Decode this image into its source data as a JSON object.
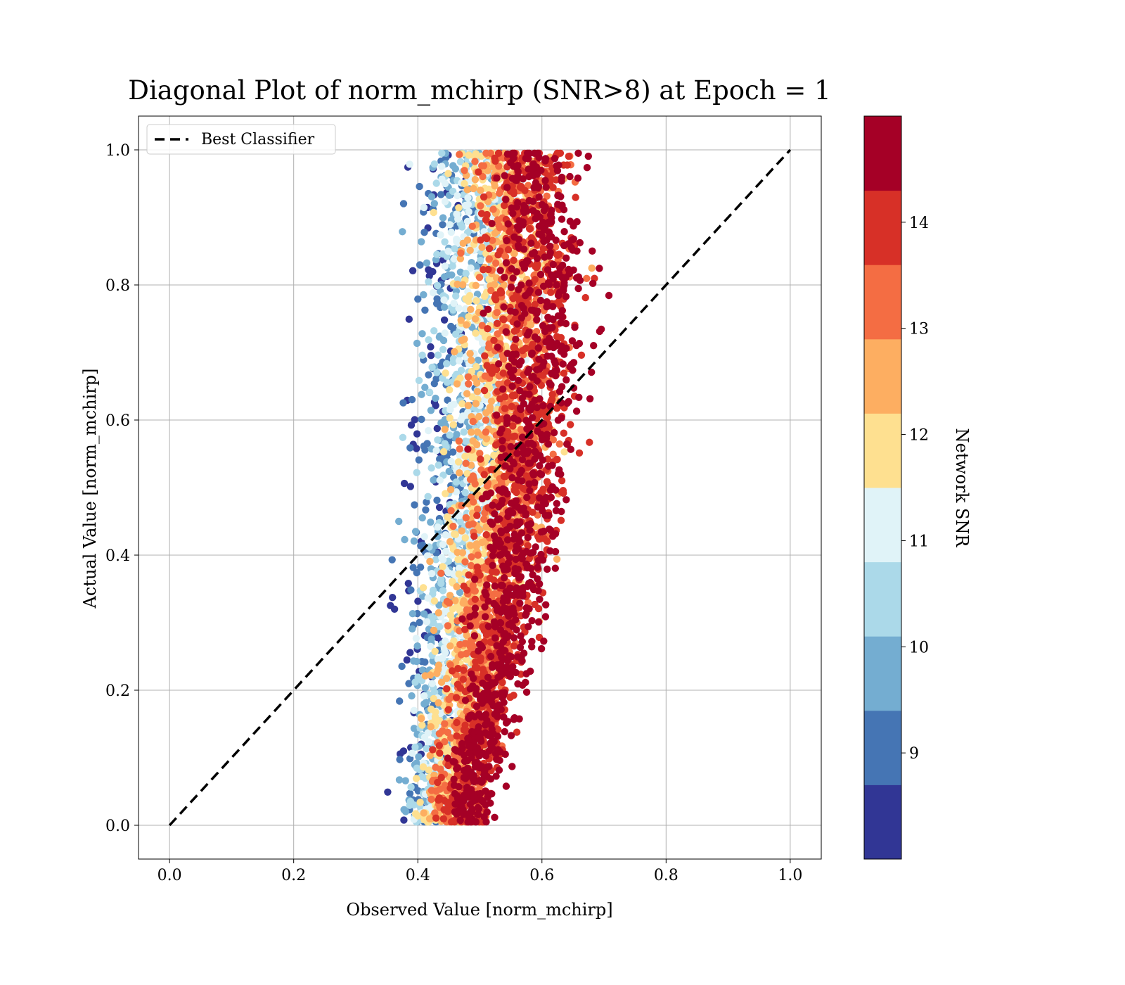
{
  "chart_data": {
    "type": "scatter",
    "title": "Diagonal Plot of norm_mchirp (SNR>8) at Epoch = 1",
    "xlabel": "Observed Value [norm_mchirp]",
    "ylabel": "Actual Value [norm_mchirp]",
    "xlim": [
      -0.05,
      1.05
    ],
    "ylim": [
      -0.05,
      1.05
    ],
    "xticks": [
      "0.0",
      "0.2",
      "0.4",
      "0.6",
      "0.8",
      "1.0"
    ],
    "yticks": [
      "0.0",
      "0.2",
      "0.4",
      "0.6",
      "0.8",
      "1.0"
    ],
    "grid": true,
    "legend": {
      "placement": "upper-left",
      "entries": [
        {
          "label": "Best Classifier",
          "style": "dashed",
          "color": "#000000"
        }
      ]
    },
    "reference_line": {
      "label": "Best Classifier",
      "x": [
        0.0,
        1.0
      ],
      "y": [
        0.0,
        1.0
      ],
      "style": "dashed",
      "color": "#000000"
    },
    "scatter_summary": {
      "description": "dense cloud of points colored by Network SNR; observed values concentrate around 0.4-0.65",
      "observed_range": [
        0.3,
        0.73
      ],
      "actual_range": [
        0.0,
        1.0
      ],
      "trend_profile": [
        {
          "actual": 0.05,
          "observed_min": 0.36,
          "observed_max": 0.55
        },
        {
          "actual": 0.2,
          "observed_min": 0.37,
          "observed_max": 0.6
        },
        {
          "actual": 0.4,
          "observed_min": 0.37,
          "observed_max": 0.66
        },
        {
          "actual": 0.6,
          "observed_min": 0.38,
          "observed_max": 0.7
        },
        {
          "actual": 0.8,
          "observed_min": 0.38,
          "observed_max": 0.72
        },
        {
          "actual": 0.98,
          "observed_min": 0.38,
          "observed_max": 0.7
        }
      ],
      "high_snr_center_shift": "high-SNR (dark red) points lie to the right of low-SNR (blue) points"
    },
    "colorbar": {
      "label": "Network SNR",
      "range": [
        8.0,
        15.0
      ],
      "ticks": [
        "9",
        "10",
        "11",
        "12",
        "13",
        "14"
      ],
      "tick_values": [
        9,
        10,
        11,
        12,
        13,
        14
      ],
      "colors": [
        "#313695",
        "#4575b4",
        "#74add1",
        "#abd9e9",
        "#e0f3f8",
        "#fee090",
        "#fdae61",
        "#f46d43",
        "#d73027",
        "#a50026"
      ]
    }
  }
}
